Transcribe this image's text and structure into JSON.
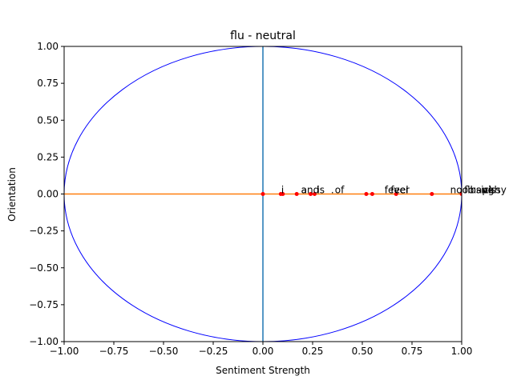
{
  "chart_data": {
    "type": "scatter",
    "title": "flu - neutral",
    "xlabel": "Sentiment Strength",
    "ylabel": "Orientation",
    "xlim": [
      -1.0,
      1.0
    ],
    "ylim": [
      -1.0,
      1.0
    ],
    "xticks": [
      "−1.00",
      "−0.75",
      "−0.50",
      "−0.25",
      "0.00",
      "0.25",
      "0.50",
      "0.75",
      "1.00"
    ],
    "yticks": [
      "−1.00",
      "−0.75",
      "−0.50",
      "−0.25",
      "0.00",
      "0.25",
      "0.50",
      "0.75",
      "1.00"
    ],
    "xtick_values": [
      -1.0,
      -0.75,
      -0.5,
      -0.25,
      0.0,
      0.25,
      0.5,
      0.75,
      1.0
    ],
    "ytick_values": [
      -1.0,
      -0.75,
      -0.5,
      -0.25,
      0.0,
      0.25,
      0.5,
      0.75,
      1.0
    ],
    "grid": false,
    "unit_circle": {
      "center": [
        0,
        0
      ],
      "radius": 1,
      "color": "#0000ff"
    },
    "vertical_line": {
      "x": 0,
      "color": "#1f77b4"
    },
    "horizontal_line": {
      "y": 0,
      "color": "#ff7f0e"
    },
    "points": [
      {
        "x": 0.0,
        "y": 0.0
      },
      {
        "x": 0.09,
        "y": 0.0
      },
      {
        "x": 0.1,
        "y": 0.0
      },
      {
        "x": 0.17,
        "y": 0.0
      },
      {
        "x": 0.24,
        "y": 0.0
      },
      {
        "x": 0.26,
        "y": 0.0
      },
      {
        "x": 0.52,
        "y": 0.0
      },
      {
        "x": 0.55,
        "y": 0.0
      },
      {
        "x": 0.67,
        "y": 0.0
      },
      {
        "x": 0.85,
        "y": 0.0
      },
      {
        "x": 1.0,
        "y": 0.0
      }
    ],
    "point_color": "#ff0000",
    "labels": [
      {
        "text": "i",
        "x": 0.08,
        "y": 0.0
      },
      {
        "text": "a",
        "x": 0.18,
        "y": 0.0
      },
      {
        "text": "and",
        "x": 0.18,
        "y": 0.0
      },
      {
        "text": "is",
        "x": 0.26,
        "y": 0.0
      },
      {
        "text": ".",
        "x": 0.33,
        "y": 0.0
      },
      {
        "text": "of",
        "x": 0.35,
        "y": 0.0
      },
      {
        "text": "fever",
        "x": 0.6,
        "y": 0.0
      },
      {
        "text": "feel",
        "x": 0.63,
        "y": 0.0
      },
      {
        "text": "nooo",
        "x": 0.93,
        "y": 0.0
      },
      {
        "text": "flu",
        "x": 1.0,
        "y": 0.0
      },
      {
        "text": "have",
        "x": 1.03,
        "y": 0.0
      },
      {
        "text": "sick",
        "x": 1.06,
        "y": 0.0
      },
      {
        "text": "ugh",
        "x": 1.09,
        "y": 0.0
      },
      {
        "text": "pissy",
        "x": 1.09,
        "y": 0.0
      }
    ]
  }
}
